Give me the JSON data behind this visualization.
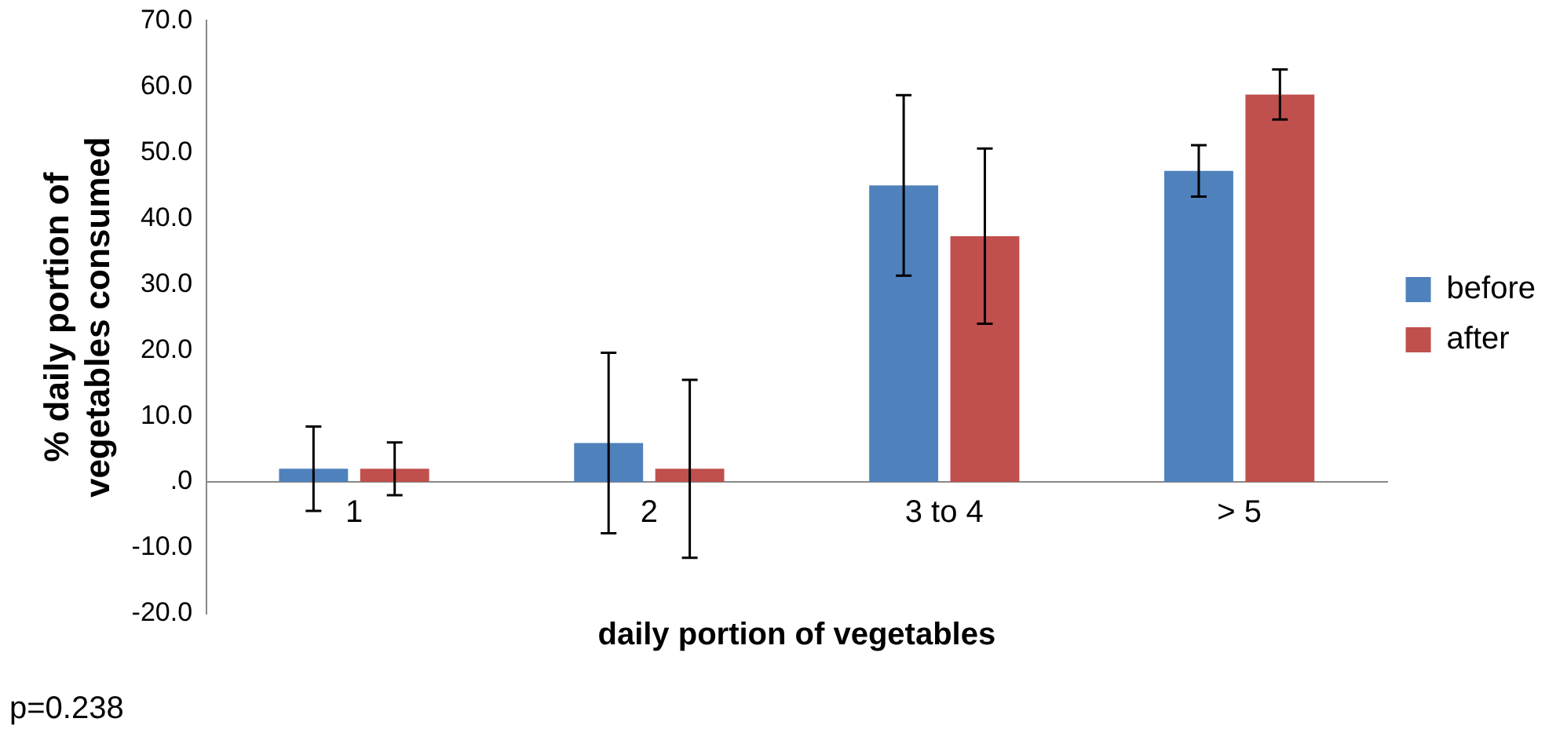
{
  "chart_data": {
    "type": "bar",
    "xlabel": "daily portion of vegetables",
    "ylabel": "% daily portion of vegetables consumed",
    "categories": [
      "1",
      "2",
      "3 to 4",
      "> 5"
    ],
    "series": [
      {
        "name": "before",
        "color": "#4f81bd",
        "values": [
          2.0,
          5.9,
          45.0,
          47.2
        ],
        "errors": [
          6.4,
          13.7,
          13.7,
          3.9
        ]
      },
      {
        "name": "after",
        "color": "#c0504d",
        "values": [
          2.0,
          2.0,
          37.3,
          58.8
        ],
        "errors": [
          4.0,
          13.5,
          13.3,
          3.8
        ]
      }
    ],
    "ylim": [
      -20,
      70
    ],
    "yticks": [
      {
        "value": -20,
        "label": "-20.0"
      },
      {
        "value": -10,
        "label": "-10.0"
      },
      {
        "value": 0,
        "label": ".0"
      },
      {
        "value": 10,
        "label": "10.0"
      },
      {
        "value": 20,
        "label": "20.0"
      },
      {
        "value": 30,
        "label": "30.0"
      },
      {
        "value": 40,
        "label": "40.0"
      },
      {
        "value": 50,
        "label": "50.0"
      },
      {
        "value": 60,
        "label": "60.0"
      },
      {
        "value": 70,
        "label": "70.0"
      }
    ],
    "grid": false,
    "legend": "right",
    "annotations": [
      "p=0.238"
    ]
  }
}
